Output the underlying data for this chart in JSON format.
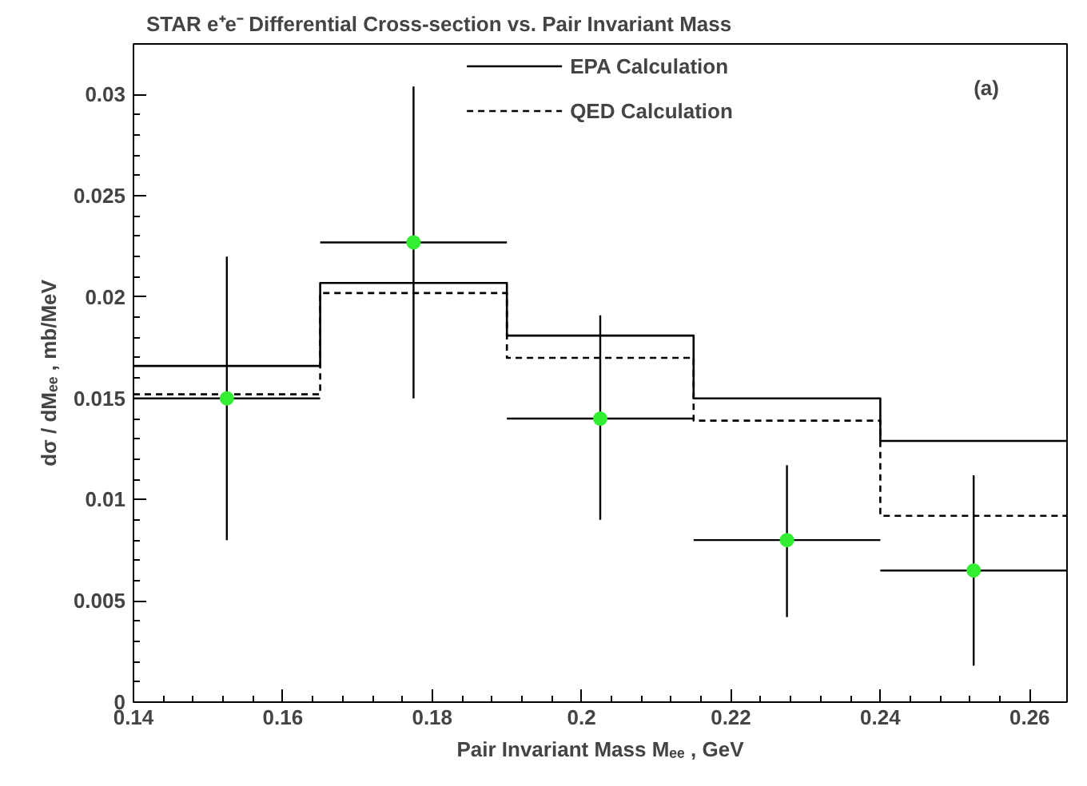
{
  "chart_data": {
    "type": "step",
    "title": "STAR e⁺e⁻ Differential Cross-section vs. Pair Invariant Mass",
    "xlabel": "Pair Invariant Mass Mₑₑ , GeV",
    "ylabel": "dσ / dMₑₑ , mb/MeV",
    "annotations": [
      "(a)"
    ],
    "x": [
      0.14,
      0.165,
      0.19,
      0.215,
      0.24,
      0.265
    ],
    "series": [
      {
        "name": "EPA Calculation",
        "color": "#000000",
        "line_style": "solid",
        "values": [
          0.0166,
          0.0207,
          0.0181,
          0.015,
          0.0129,
          0.0129
        ]
      },
      {
        "name": "QED Calculation",
        "color": "#000000",
        "line_style": "dashed",
        "values": [
          0.0152,
          0.0202,
          0.017,
          0.0139,
          0.0092,
          0.0092
        ]
      },
      {
        "type": "scatter",
        "color": "#33ee33",
        "marker": "circle",
        "x": [
          0.1525,
          0.1775,
          0.2025,
          0.2275,
          0.2525
        ],
        "values": [
          0.015,
          0.0227,
          0.014,
          0.008,
          0.0065
        ],
        "errors": [
          [
            0.008,
            0.022
          ],
          [
            0.015,
            0.0304
          ],
          [
            0.009,
            0.0191
          ],
          [
            0.0042,
            0.0117
          ],
          [
            0.0018,
            0.0112
          ]
        ],
        "xerrors": [
          0.0125,
          0.0125,
          0.0125,
          0.0125,
          0.0125
        ]
      }
    ],
    "xlim": [
      0.14,
      0.265
    ],
    "ylim": [
      0,
      0.0325
    ],
    "xticks": [
      0.14,
      0.16,
      0.18,
      0.2,
      0.22,
      0.24,
      0.26
    ],
    "yticks": [
      0,
      0.005,
      0.01,
      0.015,
      0.02,
      0.025,
      0.03
    ],
    "grid": false,
    "legend": "top"
  }
}
